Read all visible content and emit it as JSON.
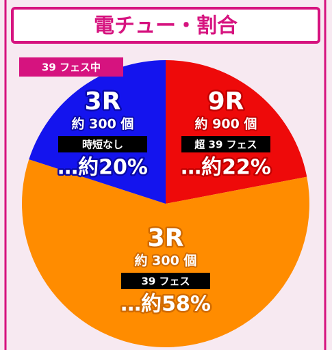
{
  "chart_data": {
    "type": "pie",
    "title": "電チュー・割合",
    "badge": "39 フェス中",
    "categories": [
      "9R",
      "3R",
      "3R"
    ],
    "payouts": [
      "約 900 個",
      "約 300 個",
      "約 300 個"
    ],
    "modes": [
      "超 39 フェス",
      "39 フェス",
      "時短なし"
    ],
    "values": [
      22,
      58,
      20
    ],
    "value_labels": [
      "…約22%",
      "…約58%",
      "…約20%"
    ],
    "colors": [
      "#ee0a0a",
      "#ff8c00",
      "#1414ee"
    ],
    "outline_colors": [
      "#c00000",
      "#d06a00",
      "#0a0aa8"
    ]
  }
}
